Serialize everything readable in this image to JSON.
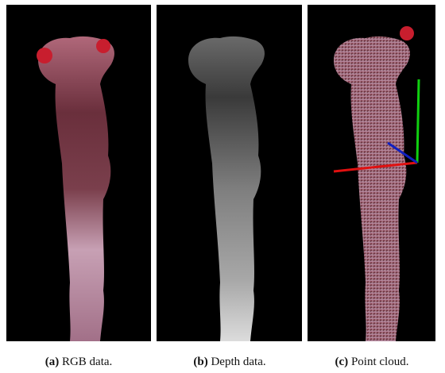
{
  "figure": {
    "panels": [
      {
        "label": "(a)",
        "caption": "RGB data."
      },
      {
        "label": "(b)",
        "caption": "Depth data."
      },
      {
        "label": "(c)",
        "caption": "Point cloud."
      }
    ]
  }
}
